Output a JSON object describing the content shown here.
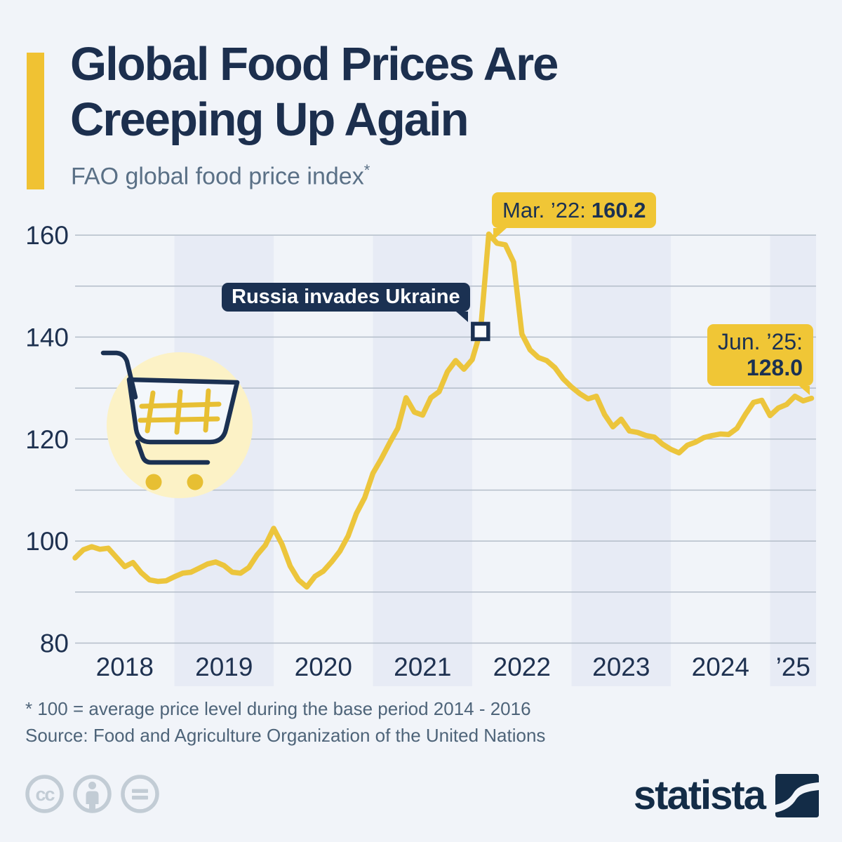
{
  "header": {
    "title_line1": "Global Food Prices Are",
    "title_line2": "Creeping Up Again",
    "subtitle": "FAO global food price index",
    "subtitle_mark": "*"
  },
  "chart_data": {
    "type": "line",
    "title": "FAO global food price index",
    "x_start": "2018-01",
    "x_end": "2025-06",
    "ylim": [
      80,
      165
    ],
    "y_ticks_labeled": [
      160,
      140,
      120,
      100,
      80
    ],
    "y_gridlines": [
      160,
      150,
      140,
      130,
      120,
      110,
      100,
      90,
      80
    ],
    "x_tick_labels": [
      "2018",
      "2019",
      "2020",
      "2021",
      "2022",
      "2023",
      "2024",
      "’25"
    ],
    "band_years": [
      2019,
      2021,
      2023,
      2025
    ],
    "grid": "horizontal-only",
    "legend": "none",
    "series": [
      {
        "name": "FAO global food price index (2014-2016 = 100)",
        "values_by_year": {
          "2018": [
            96.7,
            98.3,
            98.9,
            98.4,
            98.6,
            96.8,
            95.0,
            95.8,
            93.8,
            92.4,
            92.1,
            92.2
          ],
          "2019": [
            93.0,
            93.7,
            93.9,
            94.7,
            95.5,
            95.9,
            95.2,
            93.9,
            93.7,
            94.8,
            97.3,
            99.2
          ],
          "2020": [
            102.5,
            99.4,
            95.1,
            92.4,
            91.0,
            93.1,
            94.1,
            95.9,
            98.0,
            101.0,
            105.4,
            108.5
          ],
          "2021": [
            113.3,
            116.1,
            119.2,
            122.1,
            128.1,
            125.3,
            124.7,
            128.1,
            129.3,
            133.2,
            135.4,
            133.7
          ],
          "2022": [
            135.6,
            141.1,
            160.2,
            158.4,
            158.1,
            154.7,
            140.6,
            137.5,
            136.0,
            135.4,
            134.0,
            131.8
          ],
          "2023": [
            130.2,
            128.9,
            127.9,
            128.4,
            124.8,
            122.4,
            123.9,
            121.6,
            121.3,
            120.7,
            120.4,
            119.0
          ],
          "2024": [
            118.0,
            117.3,
            118.8,
            119.4,
            120.3,
            120.7,
            121.0,
            120.9,
            122.1,
            124.8,
            127.2,
            127.6
          ],
          "2025": [
            124.6,
            126.1,
            126.8,
            128.4,
            127.5,
            128.0
          ]
        }
      }
    ],
    "annotations": {
      "peak": {
        "label": "Mar. ’22:",
        "value": "160.2",
        "x_month": "2022-03",
        "y": 160.2
      },
      "event": {
        "text": "Russia invades Ukraine",
        "x_month": "2022-02",
        "y": 141.1
      },
      "latest": {
        "label": "Jun. ’25:",
        "value": "128.0",
        "x_month": "2025-06",
        "y": 128.0
      }
    }
  },
  "footer": {
    "footnote": "* 100 = average price level during the base period 2014 - 2016",
    "source": "Source: Food and Agriculture Organization of the United Nations",
    "license": "CC BY-ND",
    "brand": "statista"
  },
  "colors": {
    "background": "#f1f4f9",
    "band": "#e7ebf5",
    "gridline": "#b3bdc9",
    "line_yellow": "#ecc53c",
    "badge_yellow": "#f0c636",
    "accent_yellow": "#f0c233",
    "navy": "#1b3152",
    "title_navy": "#1c2f4e",
    "subtitle_gray": "#5a7086",
    "footnote_gray": "#4e6479",
    "cart_circle": "#fcf2c6",
    "cart_grid_yellow": "#e7bf33",
    "icon_gray": "#c2ccd5",
    "marker_fill": "#fafcfe"
  }
}
